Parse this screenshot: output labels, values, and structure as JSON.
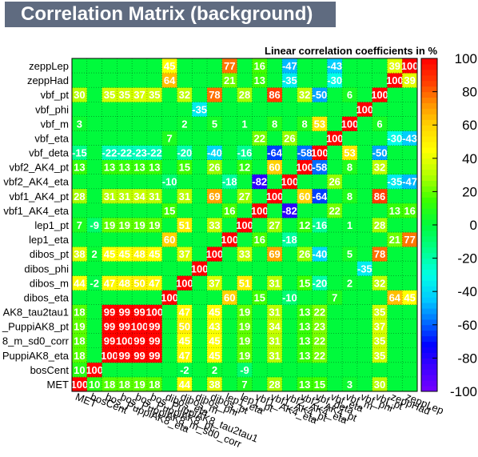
{
  "title": "Correlation Matrix (background)",
  "subtitle": "Linear correlation coefficients in %",
  "chart_data": {
    "type": "heatmap",
    "title": "Correlation Matrix (background)",
    "subtitle": "Linear correlation coefficients in %",
    "x_labels": [
      "MET",
      "bosCent",
      "bos_PuppiAK8_eta",
      "bos_PuppiAK8_m_sd0_corr",
      "bos_PuppiAK8_pt",
      "bos_PuppiAK8_tau2tau1",
      "dibos_eta",
      "dibos_m",
      "dibos_phi",
      "dibos_pt",
      "lep1_eta",
      "lep1_pt",
      "vbf1_AK4_eta",
      "vbf1_AK4_pt",
      "vbf2_AK4_eta",
      "vbf2_AK4_pt",
      "vbf_deta",
      "vbf_eta",
      "vbf_m",
      "vbf_phi",
      "vbf_pt",
      "zeppHad",
      "zeppLep"
    ],
    "x_labels_display": [
      "MET",
      "bosCent",
      "bos_PuppiAK8_eta",
      "bos_PuppiAK8_m_sd0_corr",
      "bos_PuppiAK8_pt",
      "bos_PuppiAK8_tau2tau1",
      "dibos_eta",
      "dibos_m",
      "dibos_phi",
      "dibos_pt",
      "lep1_eta",
      "lep1_pt",
      "vbf1_AK4_eta",
      "vbf1_AK4_pt",
      "vbf2_AK4_eta",
      "vbf2_AK4_pt",
      "vbf_deta",
      "vbf_eta",
      "vbf_m",
      "vbf_phi",
      "vbf_pt",
      "zeppHad",
      "zeppLep"
    ],
    "y_labels": [
      "MET",
      "bosCent",
      "PuppiAK8_eta",
      "8_m_sd0_corr",
      "_PuppiAK8_pt",
      "AK8_tau2tau1",
      "dibos_eta",
      "dibos_m",
      "dibos_phi",
      "dibos_pt",
      "lep1_eta",
      "lep1_pt",
      "vbf1_AK4_eta",
      "vbf1_AK4_pt",
      "vbf2_AK4_eta",
      "vbf2_AK4_pt",
      "vbf_deta",
      "vbf_eta",
      "vbf_m",
      "vbf_phi",
      "vbf_pt",
      "zeppHad",
      "zeppLep"
    ],
    "colorbar": {
      "min": -100,
      "max": 100,
      "ticks": [
        -100,
        -80,
        -60,
        -40,
        -20,
        0,
        20,
        40,
        60,
        80,
        100
      ]
    },
    "grid": true,
    "values": [
      [
        100,
        10,
        18,
        18,
        19,
        18,
        0,
        44,
        0,
        38,
        0,
        7,
        0,
        28,
        0,
        13,
        15,
        0,
        3,
        0,
        30,
        0,
        0
      ],
      [
        10,
        100,
        0,
        0,
        0,
        0,
        0,
        -2,
        0,
        2,
        0,
        -9,
        0,
        0,
        0,
        0,
        0,
        0,
        0,
        0,
        0,
        0,
        0
      ],
      [
        18,
        0,
        100,
        99,
        99,
        99,
        0,
        47,
        0,
        45,
        0,
        19,
        0,
        31,
        0,
        13,
        22,
        0,
        0,
        0,
        35,
        0,
        0
      ],
      [
        18,
        0,
        99,
        100,
        99,
        99,
        0,
        45,
        0,
        45,
        0,
        19,
        0,
        31,
        0,
        13,
        22,
        0,
        0,
        0,
        35,
        0,
        0
      ],
      [
        19,
        0,
        99,
        99,
        100,
        99,
        0,
        50,
        0,
        43,
        0,
        19,
        0,
        34,
        0,
        13,
        23,
        0,
        0,
        0,
        37,
        0,
        0
      ],
      [
        18,
        0,
        99,
        99,
        99,
        100,
        0,
        47,
        0,
        45,
        0,
        19,
        0,
        31,
        0,
        13,
        22,
        0,
        0,
        0,
        35,
        0,
        0
      ],
      [
        0,
        0,
        0,
        0,
        0,
        0,
        100,
        0,
        0,
        0,
        60,
        0,
        15,
        0,
        -10,
        0,
        0,
        7,
        0,
        0,
        0,
        64,
        45
      ],
      [
        44,
        -2,
        47,
        48,
        50,
        47,
        0,
        100,
        0,
        37,
        0,
        51,
        0,
        31,
        0,
        15,
        -20,
        0,
        2,
        0,
        32,
        0,
        0
      ],
      [
        0,
        0,
        0,
        0,
        0,
        0,
        0,
        0,
        100,
        0,
        0,
        0,
        0,
        0,
        0,
        0,
        0,
        0,
        0,
        -35,
        0,
        0,
        0
      ],
      [
        38,
        2,
        45,
        45,
        48,
        45,
        0,
        37,
        0,
        100,
        0,
        33,
        0,
        69,
        0,
        26,
        -40,
        0,
        5,
        0,
        78,
        0,
        0
      ],
      [
        0,
        0,
        0,
        0,
        0,
        0,
        60,
        0,
        0,
        0,
        100,
        0,
        16,
        0,
        -18,
        0,
        0,
        0,
        0,
        0,
        0,
        21,
        77
      ],
      [
        7,
        -9,
        19,
        19,
        19,
        19,
        0,
        51,
        0,
        33,
        0,
        100,
        0,
        27,
        0,
        12,
        -16,
        0,
        1,
        0,
        28,
        0,
        0
      ],
      [
        0,
        0,
        0,
        0,
        0,
        0,
        15,
        0,
        0,
        0,
        16,
        0,
        100,
        0,
        -82,
        0,
        0,
        22,
        0,
        0,
        0,
        13,
        16
      ],
      [
        28,
        0,
        31,
        31,
        34,
        31,
        0,
        31,
        0,
        69,
        0,
        27,
        0,
        100,
        0,
        60,
        -64,
        0,
        8,
        0,
        86,
        0,
        0
      ],
      [
        0,
        0,
        0,
        0,
        0,
        0,
        -10,
        0,
        0,
        0,
        -18,
        0,
        -82,
        0,
        100,
        0,
        0,
        26,
        0,
        0,
        0,
        -35,
        -47
      ],
      [
        13,
        0,
        13,
        13,
        13,
        13,
        0,
        15,
        0,
        26,
        0,
        12,
        0,
        60,
        0,
        100,
        -58,
        0,
        8,
        0,
        32,
        0,
        0
      ],
      [
        -15,
        0,
        -22,
        -22,
        -23,
        -22,
        0,
        -20,
        0,
        -40,
        0,
        -16,
        0,
        -64,
        0,
        -58,
        100,
        0,
        53,
        0,
        -50,
        0,
        0
      ],
      [
        0,
        0,
        0,
        0,
        0,
        0,
        7,
        0,
        0,
        0,
        0,
        0,
        22,
        0,
        26,
        0,
        0,
        100,
        0,
        0,
        0,
        -30,
        -43
      ],
      [
        3,
        0,
        0,
        0,
        0,
        0,
        0,
        2,
        0,
        5,
        0,
        1,
        0,
        8,
        0,
        8,
        53,
        0,
        100,
        0,
        6,
        0,
        0
      ],
      [
        0,
        0,
        0,
        0,
        0,
        0,
        0,
        0,
        -35,
        0,
        0,
        0,
        0,
        0,
        0,
        0,
        0,
        0,
        0,
        100,
        0,
        0,
        0
      ],
      [
        30,
        0,
        35,
        35,
        37,
        35,
        0,
        32,
        0,
        78,
        0,
        28,
        0,
        86,
        0,
        32,
        -50,
        0,
        6,
        0,
        100,
        0,
        0
      ],
      [
        0,
        0,
        0,
        0,
        0,
        0,
        64,
        0,
        0,
        0,
        21,
        0,
        13,
        0,
        -35,
        0,
        0,
        -30,
        0,
        0,
        0,
        100,
        39
      ],
      [
        0,
        0,
        0,
        0,
        0,
        0,
        45,
        0,
        0,
        0,
        77,
        0,
        16,
        0,
        -47,
        0,
        0,
        -43,
        0,
        0,
        0,
        39,
        100
      ]
    ]
  }
}
